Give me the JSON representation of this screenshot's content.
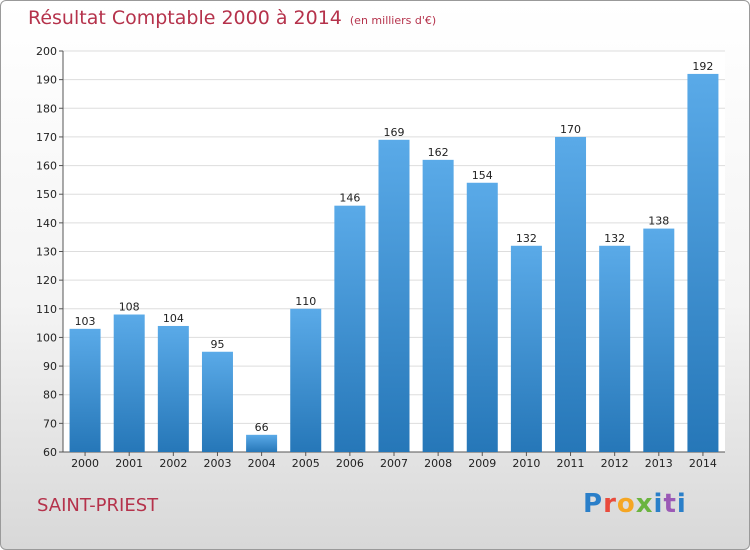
{
  "title": {
    "main": "Résultat Comptable 2000 à 2014",
    "unit": "(en milliers d'€)"
  },
  "commune": "SAINT-PRIEST",
  "brand": {
    "text": "Proxiti",
    "colors": [
      "#2a7fc9",
      "#e94b3c",
      "#f5a623",
      "#6bb43f",
      "#2a7fc9",
      "#9b59b6"
    ]
  },
  "colors": {
    "title": "#b5324b",
    "bar_top": "#5aaae8",
    "bar_bottom": "#2677b8",
    "grid": "#dddddd"
  },
  "chart_data": {
    "type": "bar",
    "title": "Résultat Comptable 2000 à 2014",
    "subtitle": "(en milliers d'€)",
    "xlabel": "",
    "ylabel": "",
    "categories": [
      "2000",
      "2001",
      "2002",
      "2003",
      "2004",
      "2005",
      "2006",
      "2007",
      "2008",
      "2009",
      "2010",
      "2011",
      "2012",
      "2013",
      "2014"
    ],
    "values": [
      103,
      108,
      104,
      95,
      66,
      110,
      146,
      169,
      162,
      154,
      132,
      170,
      132,
      138,
      192
    ],
    "ylim": [
      60,
      200
    ],
    "yticks": [
      60,
      70,
      80,
      90,
      100,
      110,
      120,
      130,
      140,
      150,
      160,
      170,
      180,
      190,
      200
    ],
    "grid": true,
    "data_labels": true
  }
}
